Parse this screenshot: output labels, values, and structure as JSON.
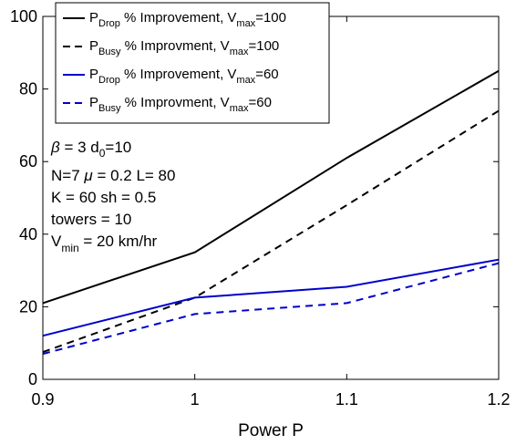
{
  "chart_data": {
    "type": "line",
    "xlabel": "Power P",
    "ylabel": "",
    "xlim": [
      0.9,
      1.2
    ],
    "ylim": [
      0,
      100
    ],
    "xticks": [
      "0.9",
      "1",
      "1.1",
      "1.2"
    ],
    "yticks": [
      "0",
      "20",
      "40",
      "60",
      "80",
      "100"
    ],
    "x": [
      0.9,
      1.0,
      1.1,
      1.2
    ],
    "series": [
      {
        "name_main": "P",
        "name_sub": "Drop",
        "name_mid": " % Improvement, V",
        "name_sub2": "max",
        "name_end": "=100",
        "color": "#000000",
        "dash": "solid",
        "values": [
          21,
          35,
          61,
          85
        ]
      },
      {
        "name_main": "P",
        "name_sub": "Busy",
        "name_mid": " % Improvment, V",
        "name_sub2": "max",
        "name_end": "=100",
        "color": "#000000",
        "dash": "dashed",
        "values": [
          7.5,
          22.5,
          48,
          74
        ]
      },
      {
        "name_main": "P",
        "name_sub": "Drop",
        "name_mid": " % Improvement, V",
        "name_sub2": "max",
        "name_end": "=60",
        "color": "#0000cc",
        "dash": "solid",
        "values": [
          12,
          22.5,
          25.5,
          33
        ]
      },
      {
        "name_main": "P",
        "name_sub": "Busy",
        "name_mid": " % Improvment, V",
        "name_sub2": "max",
        "name_end": "=60",
        "color": "#0000cc",
        "dash": "dashed",
        "values": [
          7,
          18,
          21,
          32
        ]
      }
    ],
    "legend_position": "top",
    "grid": false,
    "annotation": {
      "line1_beta": "β",
      "line1_text": " = 3 d",
      "line1_sub": "0",
      "line1_end": "=10",
      "line2_a": "N=7 ",
      "line2_mu": "μ",
      "line2_b": " = 0.2 L= 80",
      "line3": "K = 60 sh = 0.5",
      "line4": "towers = 10",
      "line5_main": "V",
      "line5_sub": "min",
      "line5_end": " = 20 km/hr"
    }
  }
}
